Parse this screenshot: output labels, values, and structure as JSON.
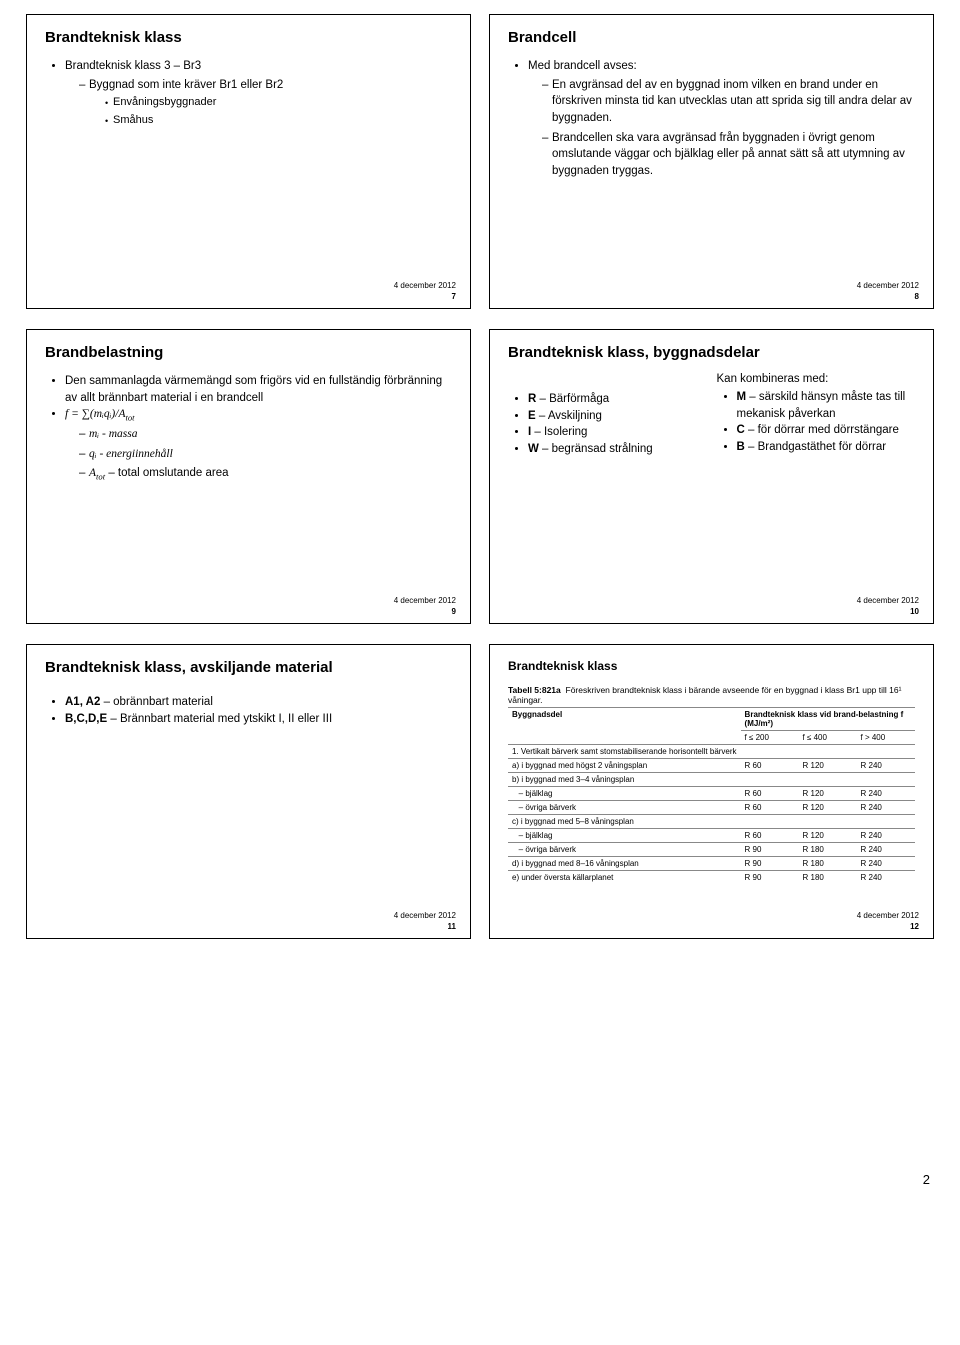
{
  "global": {
    "date": "4 december 2012",
    "page_bottom": "2"
  },
  "slides": {
    "s7": {
      "title": "Brandteknisk klass",
      "l1": "Brandteknisk klass 3 – Br3",
      "l2": "Byggnad som inte kräver Br1 eller Br2",
      "l3": "Envåningsbyggnader",
      "l4": "Småhus",
      "num": "7"
    },
    "s8": {
      "title": "Brandcell",
      "l1": "Med brandcell avses:",
      "l2": "En avgränsad del av en byggnad inom vilken en brand under en förskriven minsta tid kan utvecklas utan att sprida sig till andra delar av byggnaden.",
      "l3": "Brandcellen ska vara avgränsad från byggnaden i övrigt genom omslutande väggar och bjälklag eller på annat sätt så att utymning av byggnaden tryggas.",
      "num": "8"
    },
    "s9": {
      "title": "Brandbelastning",
      "l1": "Den sammanlagda värmemängd som frigörs vid en fullständig förbränning av allt brännbart material i en brandcell",
      "formula": "f = ∑(mᵢqᵢ)/A",
      "formula_sub": "tot",
      "m": "mᵢ - massa",
      "q": "qᵢ - energiinnehåll",
      "a": "A",
      "a_sub": "tot",
      "a_txt": " – total omslutande area",
      "num": "9"
    },
    "s10": {
      "title": "Brandteknisk klass, byggnadsdelar",
      "left": {
        "r": "R – Bärförmåga",
        "e": "E – Avskiljning",
        "i": "I – Isolering",
        "w": "W – begränsad strålning"
      },
      "right": {
        "head": "Kan kombineras med:",
        "m": "M – särskild hänsyn måste tas till mekanisk påverkan",
        "c": "C – för dörrar med dörrstängare",
        "b": "B – Brandgastäthet för dörrar"
      },
      "num": "10"
    },
    "s11": {
      "title": "Brandteknisk klass, avskiljande material",
      "l1": "A1, A2 – obrännbart material",
      "l2": "B,C,D,E – Brännbart material med ytskikt I, II eller III",
      "num": "11"
    },
    "s12": {
      "title": "Brandteknisk klass",
      "table": {
        "caption_label": "Tabell 5:821a",
        "caption": "Föreskriven brandteknisk klass i bärande avseende för en byggnad i klass Br1 upp till 16¹ våningar.",
        "col1": "Byggnadsdel",
        "col2": "Brandteknisk klass vid brand-belastning f (MJ/m²)",
        "h1": "f ≤ 200",
        "h2": "f ≤ 400",
        "h3": "f > 400",
        "rows": [
          [
            "1. Vertikalt bärverk samt stomstabiliserande horisontellt bärverk",
            "",
            "",
            ""
          ],
          [
            "a) i byggnad med högst 2 våningsplan",
            "R 60",
            "R 120",
            "R 240"
          ],
          [
            "b) i byggnad med 3–4 våningsplan",
            "",
            "",
            ""
          ],
          [
            "   – bjälklag",
            "R 60",
            "R 120",
            "R 240"
          ],
          [
            "   – övriga bärverk",
            "R 60",
            "R 120",
            "R 240"
          ],
          [
            "c) i byggnad med 5–8 våningsplan",
            "",
            "",
            ""
          ],
          [
            "   – bjälklag",
            "R 60",
            "R 120",
            "R 240"
          ],
          [
            "   – övriga bärverk",
            "R 90",
            "R 180",
            "R 240"
          ],
          [
            "d) i byggnad med 8–16 våningsplan",
            "R 90",
            "R 180",
            "R 240"
          ],
          [
            "e) under översta källarplanet",
            "R 90",
            "R 180",
            "R 240"
          ]
        ]
      },
      "num": "12"
    }
  }
}
